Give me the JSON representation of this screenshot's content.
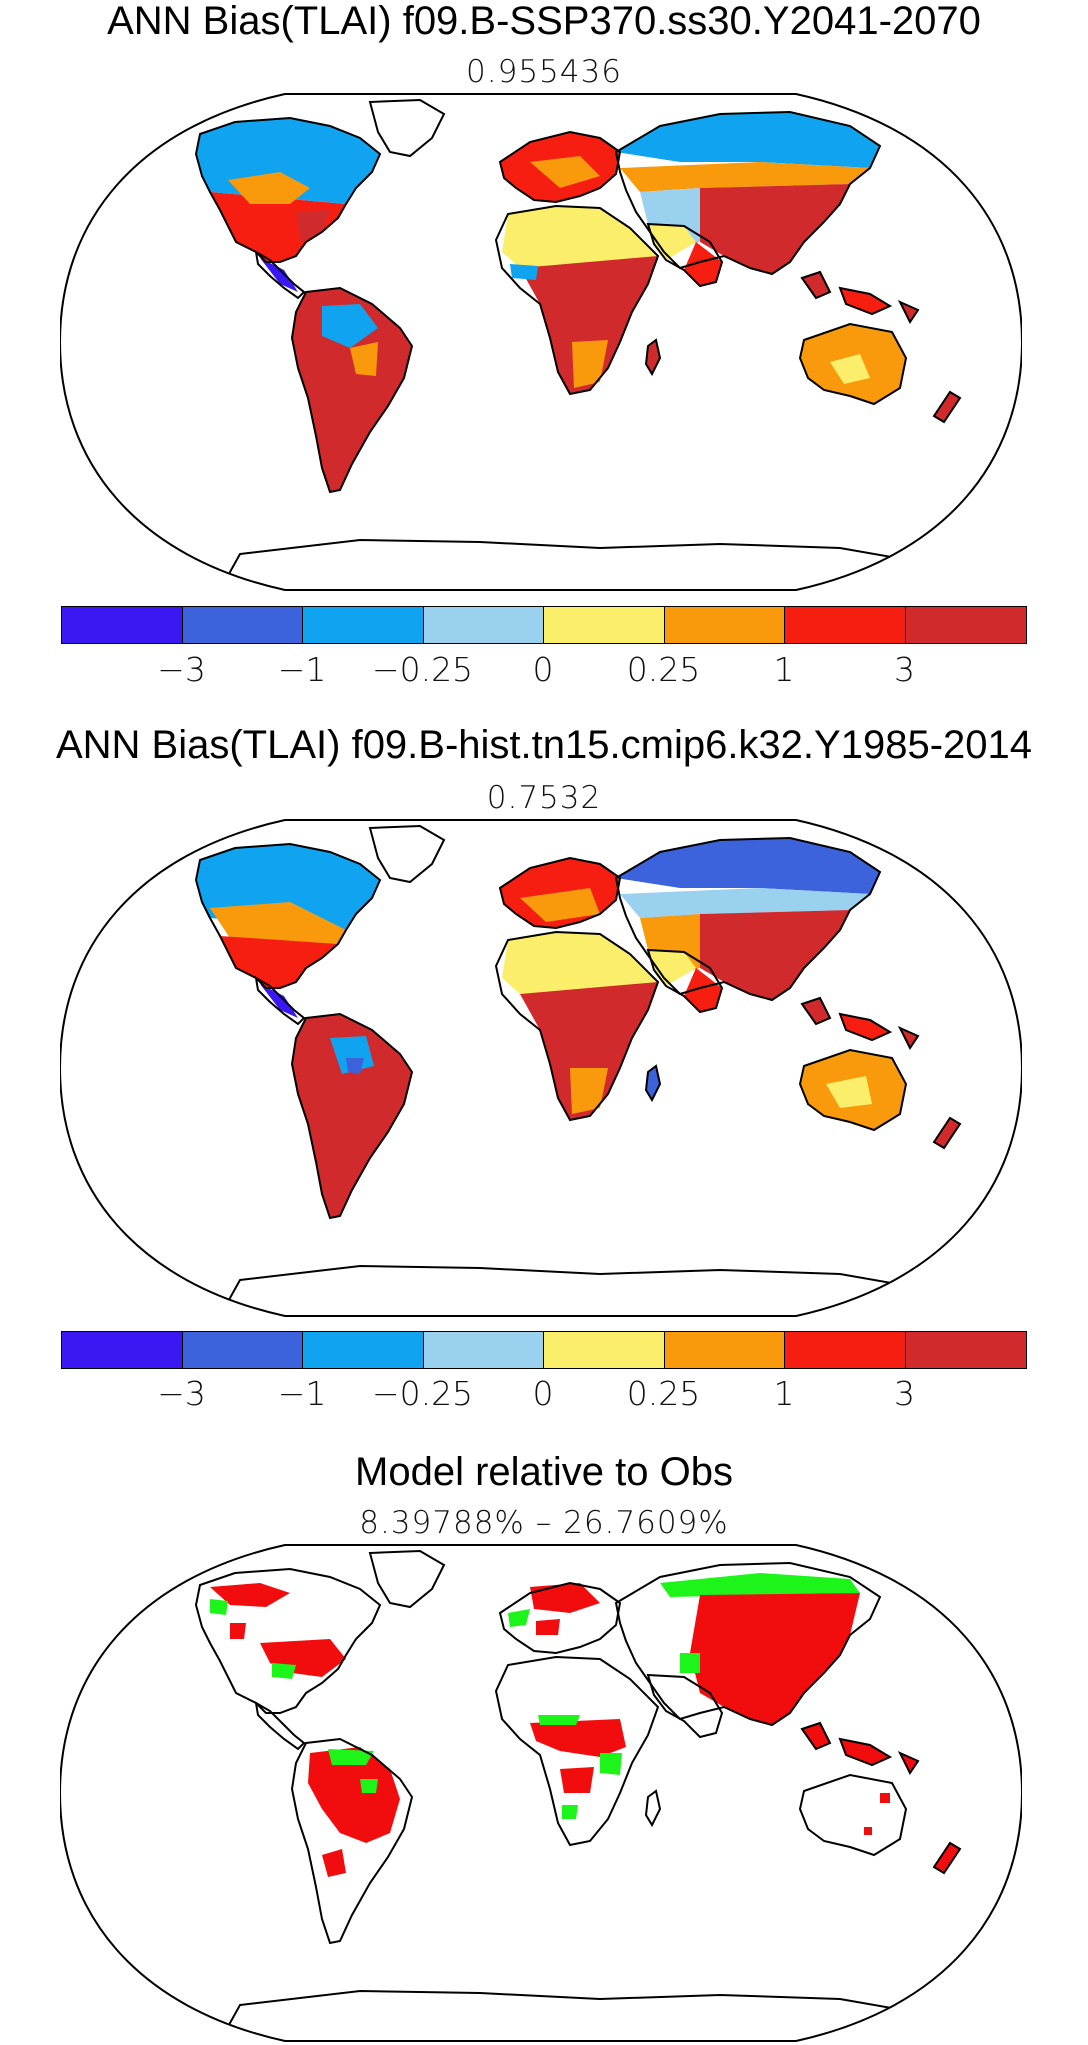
{
  "panels": [
    {
      "title": "ANN Bias(TLAI) f09.B-SSP370.ss30.Y2041-2070",
      "subtitle": "0.955436",
      "has_colorbar": true
    },
    {
      "title": "ANN Bias(TLAI) f09.B-hist.tn15.cmip6.k32.Y1985-2014",
      "subtitle": "0.7532",
      "has_colorbar": true
    },
    {
      "title": "Model relative to Obs",
      "subtitle": "8.39788% – 26.7609%",
      "has_colorbar": false
    }
  ],
  "colorbar": {
    "colors": [
      "#3b17f2",
      "#3c62dc",
      "#10a4f0",
      "#9ad1ef",
      "#fbee6a",
      "#f89a0c",
      "#f61e10",
      "#d12a2c"
    ],
    "tick_labels": [
      "−3",
      "−1",
      "−0.25",
      "0",
      "0.25",
      "1",
      "3"
    ]
  },
  "relative_map_colors": {
    "model_worse": "#f10d0d",
    "model_better": "#1df51a"
  }
}
